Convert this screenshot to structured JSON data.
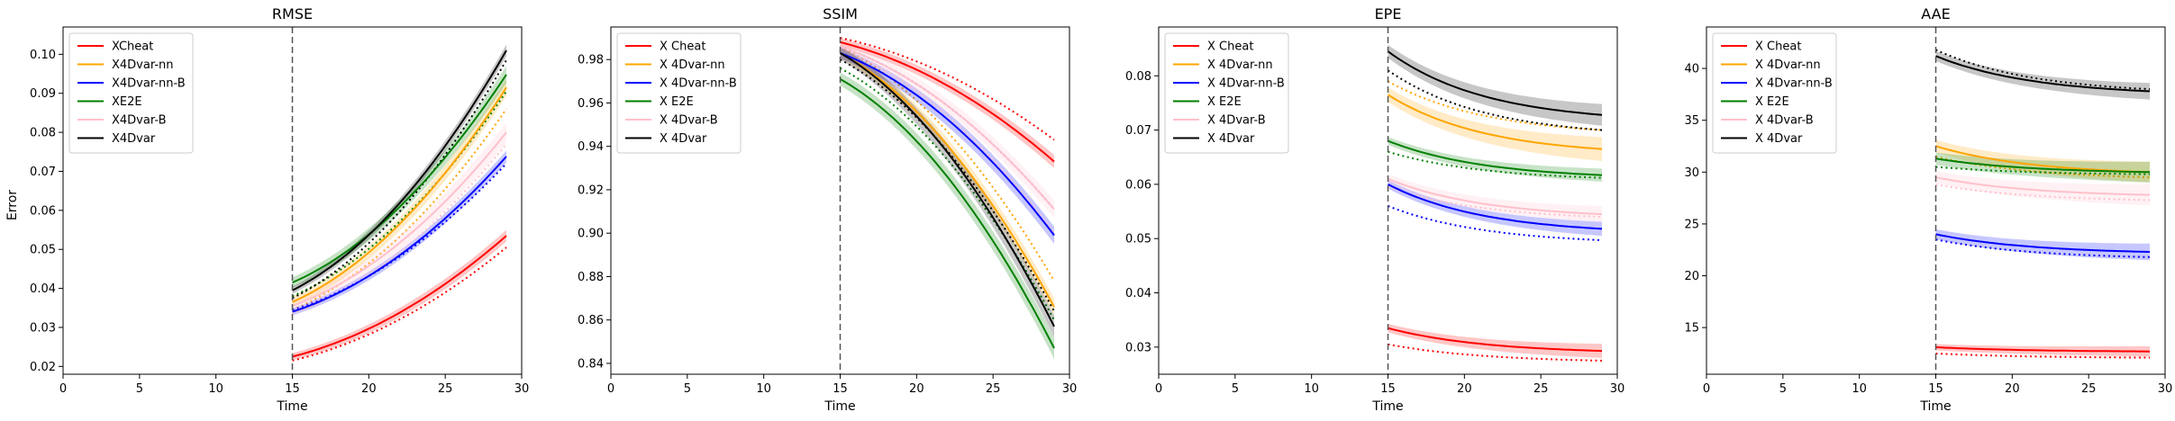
{
  "figure": {
    "ylabel": "Error"
  },
  "chart_data": [
    {
      "type": "line",
      "title": "RMSE",
      "xlabel": "Time",
      "ylabel": "Error",
      "xlim": [
        0,
        30
      ],
      "ylim": [
        0.018,
        0.107
      ],
      "xticks": [
        0,
        5,
        10,
        15,
        20,
        25,
        30
      ],
      "yticks": [
        0.02,
        0.03,
        0.04,
        0.05,
        0.06,
        0.07,
        0.08,
        0.09,
        0.1
      ],
      "ytick_labels": [
        "0.02",
        "0.03",
        "0.04",
        "0.05",
        "0.06",
        "0.07",
        "0.08",
        "0.09",
        "0.10"
      ],
      "vline_x": 15,
      "x_range": [
        15,
        29
      ],
      "legend_position": "top-left",
      "series": [
        {
          "name": "XCheat",
          "color": "#ff0000",
          "start": 0.0225,
          "end": 0.0535,
          "shape": "convex",
          "band": 0.0015,
          "dotted": [
            0.0215,
            0.0505
          ]
        },
        {
          "name": "X4Dvar-nn",
          "color": "#ffa500",
          "start": 0.0365,
          "end": 0.0915,
          "shape": "convex",
          "band": 0.0022,
          "dotted": [
            0.0345,
            0.086
          ]
        },
        {
          "name": "X4Dvar-nn-B",
          "color": "#0000ff",
          "start": 0.034,
          "end": 0.0738,
          "shape": "convex",
          "band": 0.0015,
          "dotted": [
            0.0345,
            0.072
          ]
        },
        {
          "name": "XE2E",
          "color": "#008000",
          "start": 0.0415,
          "end": 0.0948,
          "shape": "convex",
          "band": 0.0022,
          "dotted": [
            0.038,
            0.0905
          ]
        },
        {
          "name": "X4Dvar-B",
          "color": "#ffc0cb",
          "start": 0.0355,
          "end": 0.08,
          "shape": "convex",
          "band": 0.0025,
          "dotted": [
            0.0335,
            0.077
          ]
        },
        {
          "name": "X4Dvar",
          "color": "#000000",
          "start": 0.0395,
          "end": 0.101,
          "shape": "convex",
          "band": 0.0015,
          "dotted": [
            0.0375,
            0.0985
          ]
        }
      ]
    },
    {
      "type": "line",
      "title": "SSIM",
      "xlabel": "Time",
      "ylabel": "",
      "xlim": [
        0,
        30
      ],
      "ylim": [
        0.835,
        0.995
      ],
      "xticks": [
        0,
        5,
        10,
        15,
        20,
        25,
        30
      ],
      "yticks": [
        0.84,
        0.86,
        0.88,
        0.9,
        0.92,
        0.94,
        0.96,
        0.98
      ],
      "ytick_labels": [
        "0.84",
        "0.86",
        "0.88",
        "0.90",
        "0.92",
        "0.94",
        "0.96",
        "0.98"
      ],
      "vline_x": 15,
      "x_range": [
        15,
        29
      ],
      "legend_position": "top-left",
      "series": [
        {
          "name": "X Cheat",
          "color": "#ff0000",
          "start": 0.988,
          "end": 0.933,
          "shape": "convex",
          "band": 0.003,
          "dotted": [
            0.99,
            0.943
          ]
        },
        {
          "name": "X 4Dvar-nn",
          "color": "#ffa500",
          "start": 0.983,
          "end": 0.866,
          "shape": "convex",
          "band": 0.004,
          "dotted": [
            0.986,
            0.878
          ]
        },
        {
          "name": "X 4Dvar-nn-B",
          "color": "#0000ff",
          "start": 0.983,
          "end": 0.899,
          "shape": "convex",
          "band": 0.004,
          "dotted": [
            0.986,
            0.911
          ]
        },
        {
          "name": "X E2E",
          "color": "#008000",
          "start": 0.971,
          "end": 0.847,
          "shape": "convex",
          "band": 0.005,
          "dotted": [
            0.976,
            0.86
          ]
        },
        {
          "name": "X 4Dvar-B",
          "color": "#ffc0cb",
          "start": 0.986,
          "end": 0.911,
          "shape": "convex",
          "band": 0.004,
          "dotted": [
            0.985,
            0.9
          ]
        },
        {
          "name": "X 4Dvar",
          "color": "#000000",
          "start": 0.983,
          "end": 0.857,
          "shape": "convex",
          "band": 0.005,
          "dotted": [
            0.98,
            0.864
          ]
        }
      ]
    },
    {
      "type": "line",
      "title": "EPE",
      "xlabel": "Time",
      "ylabel": "",
      "xlim": [
        0,
        30
      ],
      "ylim": [
        0.025,
        0.089
      ],
      "xticks": [
        0,
        5,
        10,
        15,
        20,
        25,
        30
      ],
      "yticks": [
        0.03,
        0.04,
        0.05,
        0.06,
        0.07,
        0.08
      ],
      "ytick_labels": [
        "0.03",
        "0.04",
        "0.05",
        "0.06",
        "0.07",
        "0.08"
      ],
      "vline_x": 15,
      "x_range": [
        15,
        29
      ],
      "legend_position": "top-left",
      "series": [
        {
          "name": "X Cheat",
          "color": "#ff0000",
          "start": 0.0335,
          "end": 0.0293,
          "shape": "decay",
          "band": 0.0013,
          "dotted": [
            0.0305,
            0.0275
          ]
        },
        {
          "name": "X 4Dvar-nn",
          "color": "#ffa500",
          "start": 0.0765,
          "end": 0.0665,
          "shape": "decay",
          "band": 0.0022,
          "dotted": [
            0.079,
            0.07
          ]
        },
        {
          "name": "X 4Dvar-nn-B",
          "color": "#0000ff",
          "start": 0.06,
          "end": 0.0518,
          "shape": "decay",
          "band": 0.0013,
          "dotted": [
            0.056,
            0.0497
          ]
        },
        {
          "name": "X E2E",
          "color": "#008000",
          "start": 0.068,
          "end": 0.0617,
          "shape": "decay",
          "band": 0.0012,
          "dotted": [
            0.066,
            0.0612
          ]
        },
        {
          "name": "X 4Dvar-B",
          "color": "#ffc0cb",
          "start": 0.061,
          "end": 0.0545,
          "shape": "decay",
          "band": 0.0015,
          "dotted": [
            0.0595,
            0.054
          ]
        },
        {
          "name": "X 4Dvar",
          "color": "#000000",
          "start": 0.0845,
          "end": 0.0728,
          "shape": "decay",
          "band": 0.002,
          "dotted": [
            0.081,
            0.07
          ]
        }
      ]
    },
    {
      "type": "line",
      "title": "AAE",
      "xlabel": "Time",
      "ylabel": "",
      "xlim": [
        0,
        30
      ],
      "ylim": [
        10.5,
        44.0
      ],
      "xticks": [
        0,
        5,
        10,
        15,
        20,
        25,
        30
      ],
      "yticks": [
        15,
        20,
        25,
        30,
        35,
        40
      ],
      "ytick_labels": [
        "15",
        "20",
        "25",
        "30",
        "35",
        "40"
      ],
      "vline_x": 15,
      "x_range": [
        15,
        29
      ],
      "legend_position": "top-left",
      "series": [
        {
          "name": "X Cheat",
          "color": "#ff0000",
          "start": 13.1,
          "end": 12.7,
          "shape": "decay",
          "band": 0.5,
          "dotted": [
            12.5,
            12.1
          ]
        },
        {
          "name": "X 4Dvar-nn",
          "color": "#ffa500",
          "start": 32.5,
          "end": 30.0,
          "shape": "decay",
          "band": 1.0,
          "dotted": [
            31.5,
            29.5
          ]
        },
        {
          "name": "X 4Dvar-nn-B",
          "color": "#0000ff",
          "start": 24.0,
          "end": 22.3,
          "shape": "decay",
          "band": 0.8,
          "dotted": [
            23.5,
            21.8
          ]
        },
        {
          "name": "X E2E",
          "color": "#008000",
          "start": 31.3,
          "end": 30.0,
          "shape": "decay",
          "band": 1.0,
          "dotted": [
            30.5,
            29.8
          ]
        },
        {
          "name": "X 4Dvar-B",
          "color": "#ffc0cb",
          "start": 29.5,
          "end": 27.8,
          "shape": "decay",
          "band": 1.0,
          "dotted": [
            28.8,
            27.3
          ]
        },
        {
          "name": "X 4Dvar",
          "color": "#000000",
          "start": 41.2,
          "end": 37.8,
          "shape": "decay",
          "band": 0.8,
          "dotted": [
            41.8,
            38.0
          ]
        }
      ]
    }
  ]
}
